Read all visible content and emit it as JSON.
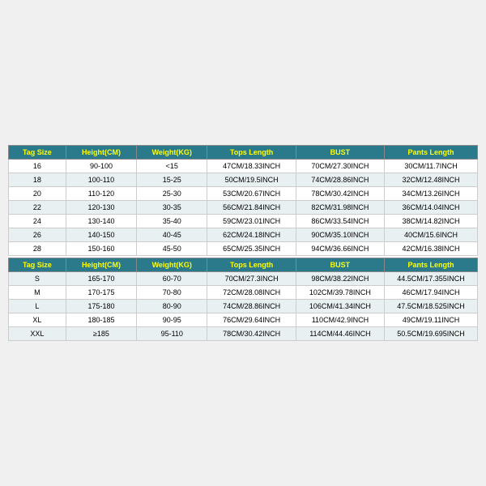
{
  "headers": [
    "Tag Size",
    "Height(CM)",
    "Weight(KG)",
    "Tops Length",
    "BUST",
    "Pants Length"
  ],
  "table1_rows": [
    [
      "16",
      "90-100",
      "<15",
      "47CM/18.33INCH",
      "70CM/27.30INCH",
      "30CM/11.7INCH"
    ],
    [
      "18",
      "100-110",
      "15-25",
      "50CM/19.5INCH",
      "74CM/28.86INCH",
      "32CM/12.48INCH"
    ],
    [
      "20",
      "110-120",
      "25-30",
      "53CM/20.67INCH",
      "78CM/30.42INCH",
      "34CM/13.26INCH"
    ],
    [
      "22",
      "120-130",
      "30-35",
      "56CM/21.84INCH",
      "82CM/31.98INCH",
      "36CM/14.04INCH"
    ],
    [
      "24",
      "130-140",
      "35-40",
      "59CM/23.01INCH",
      "86CM/33.54INCH",
      "38CM/14.82INCH"
    ],
    [
      "26",
      "140-150",
      "40-45",
      "62CM/24.18INCH",
      "90CM/35.10INCH",
      "40CM/15.6INCH"
    ],
    [
      "28",
      "150-160",
      "45-50",
      "65CM/25.35INCH",
      "94CM/36.66INCH",
      "42CM/16.38INCH"
    ]
  ],
  "table2_rows": [
    [
      "S",
      "165-170",
      "60-70",
      "70CM/27.3INCH",
      "98CM/38.22INCH",
      "44.5CM/17.355INCH"
    ],
    [
      "M",
      "170-175",
      "70-80",
      "72CM/28.08INCH",
      "102CM/39.78INCH",
      "46CM/17.94INCH"
    ],
    [
      "L",
      "175-180",
      "80-90",
      "74CM/28.86INCH",
      "106CM/41.34INCH",
      "47.5CM/18.525INCH"
    ],
    [
      "XL",
      "180-185",
      "90-95",
      "76CM/29.64INCH",
      "110CM/42.9INCH",
      "49CM/19.11INCH"
    ],
    [
      "XXL",
      "≥185",
      "95-110",
      "78CM/30.42INCH",
      "114CM/44.46INCH",
      "50.5CM/19.695INCH"
    ]
  ],
  "styling": {
    "header_bg": "#2b7a8c",
    "header_text_color": "#ffff00",
    "row_alt_bg": "#e8f0f2",
    "row_bg": "#ffffff",
    "border_color": "#ccc",
    "font_size": 9
  }
}
